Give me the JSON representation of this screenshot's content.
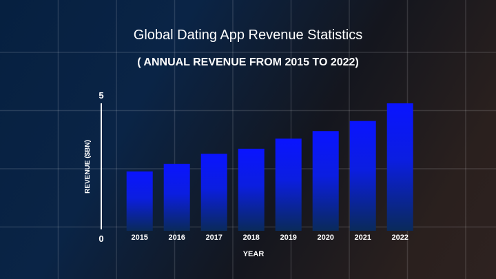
{
  "chart_data": {
    "type": "bar",
    "title": "Global Dating App Revenue Statistics",
    "subtitle": "( ANNUAL REVENUE FROM 2015 TO 2022)",
    "xlabel": "YEAR",
    "ylabel": "REVENUE ($BN)",
    "categories": [
      "2015",
      "2016",
      "2017",
      "2018",
      "2019",
      "2020",
      "2021",
      "2022"
    ],
    "values": [
      2.3,
      2.6,
      3.0,
      3.2,
      3.6,
      3.9,
      4.3,
      5.0
    ],
    "ylim": [
      0,
      5
    ],
    "yticks": [
      "0",
      "5"
    ],
    "grid": true,
    "colors": {
      "bar_top": "#0a14ff",
      "bar_bottom": "#0a2a5a",
      "text": "#ffffff"
    }
  }
}
